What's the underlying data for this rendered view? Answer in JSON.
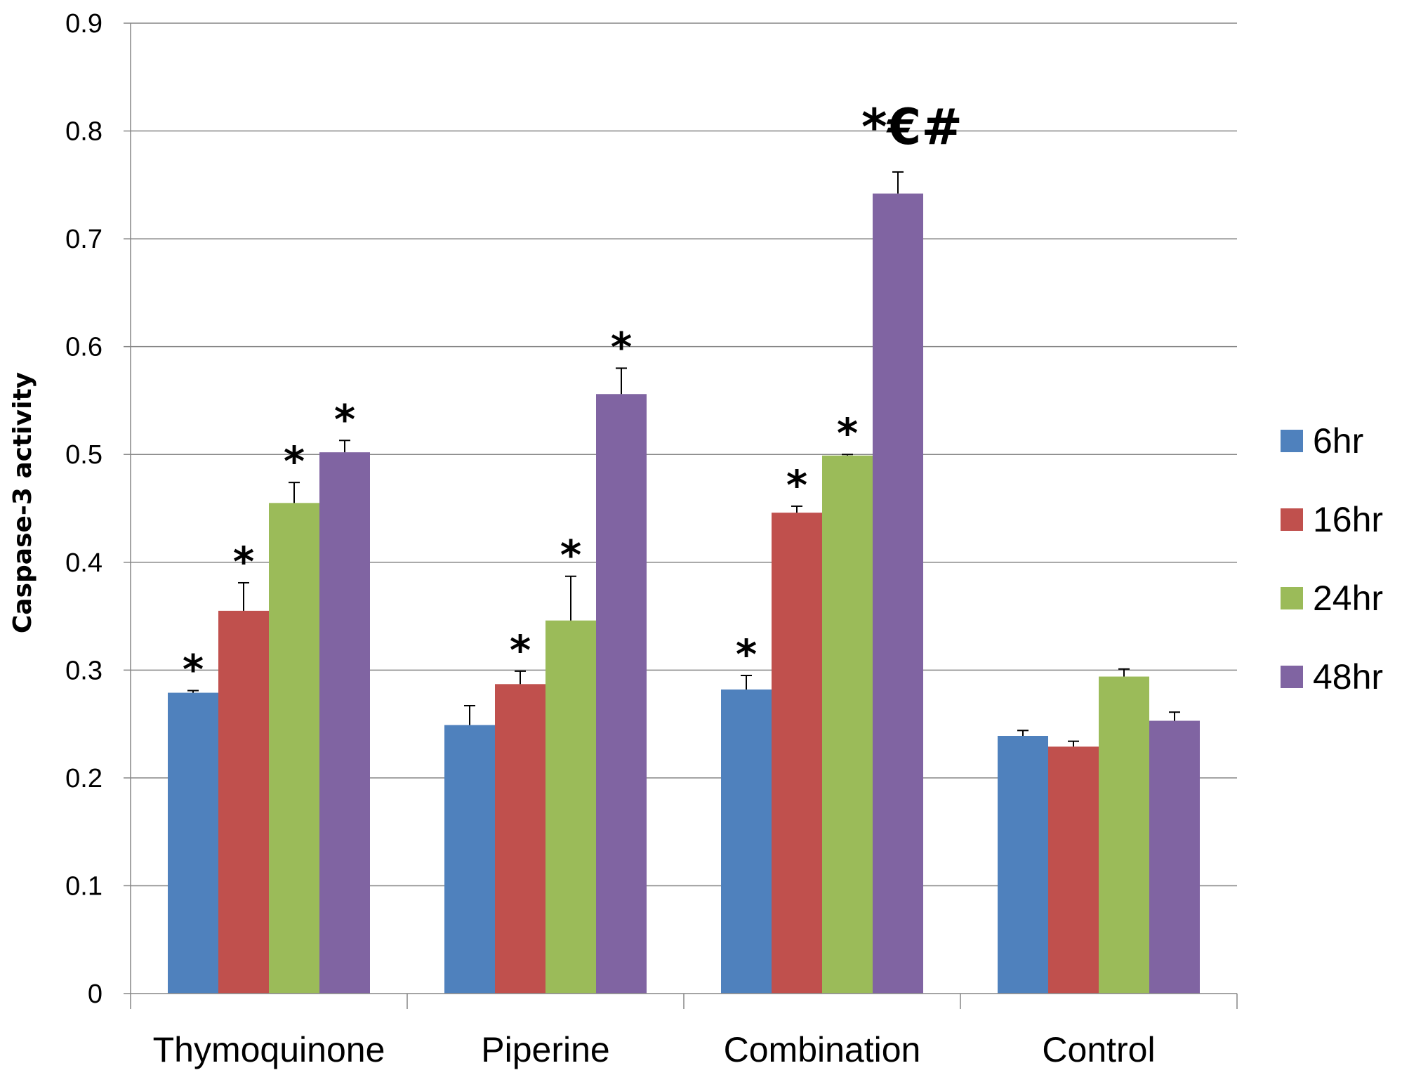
{
  "chart_data": {
    "type": "bar",
    "title": "",
    "xlabel": "",
    "ylabel": "Caspase-3  activity",
    "ylim": [
      0,
      0.9
    ],
    "yticks": [
      "0",
      "0.1",
      "0.2",
      "0.3",
      "0.4",
      "0.5",
      "0.6",
      "0.7",
      "0.8",
      "0.9"
    ],
    "categories": [
      "Thymoquinone",
      "Piperine",
      "Combination",
      "Control"
    ],
    "grid": true,
    "legend": "right",
    "series": [
      {
        "name": "6hr",
        "color": "#4F81BD",
        "values": [
          0.279,
          0.249,
          0.282,
          0.239
        ],
        "errors": [
          0.002,
          0.018,
          0.013,
          0.005
        ]
      },
      {
        "name": "16hr",
        "color": "#C0504D",
        "values": [
          0.355,
          0.287,
          0.446,
          0.229
        ],
        "errors": [
          0.026,
          0.012,
          0.006,
          0.005
        ]
      },
      {
        "name": "24hr",
        "color": "#9BBB59",
        "values": [
          0.455,
          0.346,
          0.499,
          0.294
        ],
        "errors": [
          0.019,
          0.041,
          0.001,
          0.007
        ]
      },
      {
        "name": "48hr",
        "color": "#8064A2",
        "values": [
          0.502,
          0.556,
          0.742,
          0.253
        ],
        "errors": [
          0.011,
          0.024,
          0.02,
          0.008
        ]
      }
    ],
    "annotations": [
      [
        "*",
        "*",
        "*",
        "*"
      ],
      [
        "",
        "*",
        "*",
        "*"
      ],
      [
        "*",
        "*",
        "*",
        "*€#"
      ],
      [
        "",
        "",
        "",
        ""
      ]
    ]
  }
}
